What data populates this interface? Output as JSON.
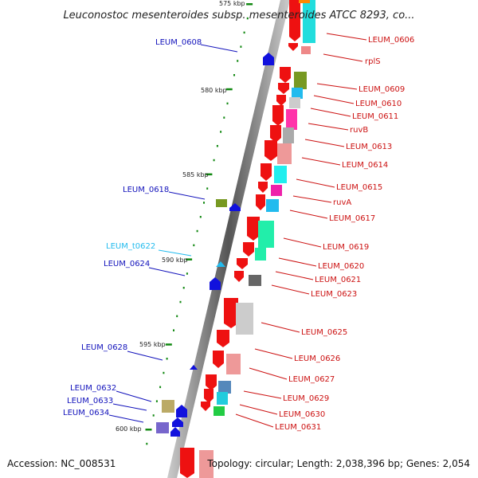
{
  "title": "Leuconostoc mesenteroides subsp. mesenteroides ATCC 8293, co...",
  "footer": {
    "accession": "Accession: NC_008531",
    "topology": "Topology: circular; Length: 2,038,396 bp; Genes: 2,054"
  },
  "ruler_labels": [
    "575 kbp",
    "580 kbp",
    "585 kbp",
    "590 kbp",
    "595 kbp",
    "600 kbp"
  ],
  "right_labels": [
    "LEUM_0606",
    "rplS",
    "LEUM_0609",
    "LEUM_0610",
    "LEUM_0611",
    "ruvB",
    "LEUM_0613",
    "LEUM_0614",
    "LEUM_0615",
    "ruvA",
    "LEUM_0617",
    "LEUM_0619",
    "LEUM_0620",
    "LEUM_0621",
    "LEUM_0623",
    "LEUM_0625",
    "LEUM_0626",
    "LEUM_0627",
    "LEUM_0629",
    "LEUM_0630",
    "LEUM_0631"
  ],
  "left_labels": [
    "LEUM_0608",
    "LEUM_0618",
    "LEUM_t0622",
    "LEUM_0624",
    "LEUM_0628",
    "LEUM_0632",
    "LEUM_0633",
    "LEUM_0634"
  ],
  "colors": {
    "forward_gene": "#ee1111",
    "reverse_gene": "#1111dd",
    "trna": "#22bbee",
    "backbone": "#888888",
    "tick": "#118811"
  }
}
